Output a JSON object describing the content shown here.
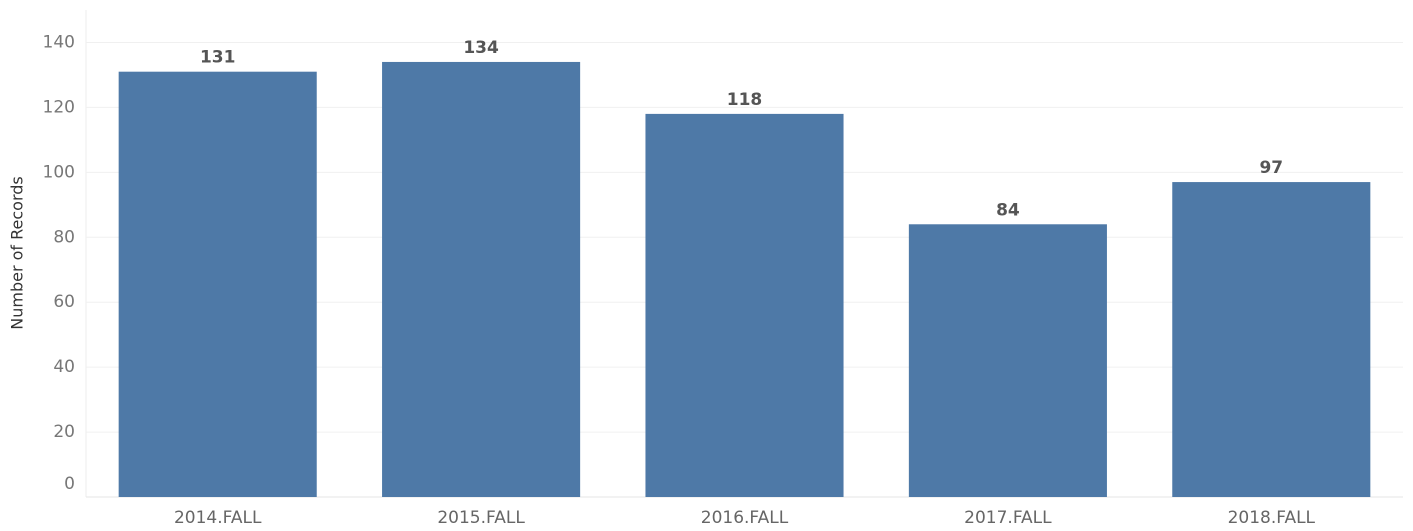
{
  "chart_data": {
    "type": "bar",
    "y_label": "Number of Records",
    "categories": [
      "2014.FALL",
      "2015.FALL",
      "2016.FALL",
      "2017.FALL",
      "2018.FALL"
    ],
    "values": [
      131,
      134,
      118,
      84,
      97
    ],
    "color": "#4e79a7",
    "ylim": [
      0,
      150
    ],
    "yticks": [
      0,
      20,
      40,
      60,
      80,
      100,
      120,
      140
    ],
    "grid": true
  }
}
